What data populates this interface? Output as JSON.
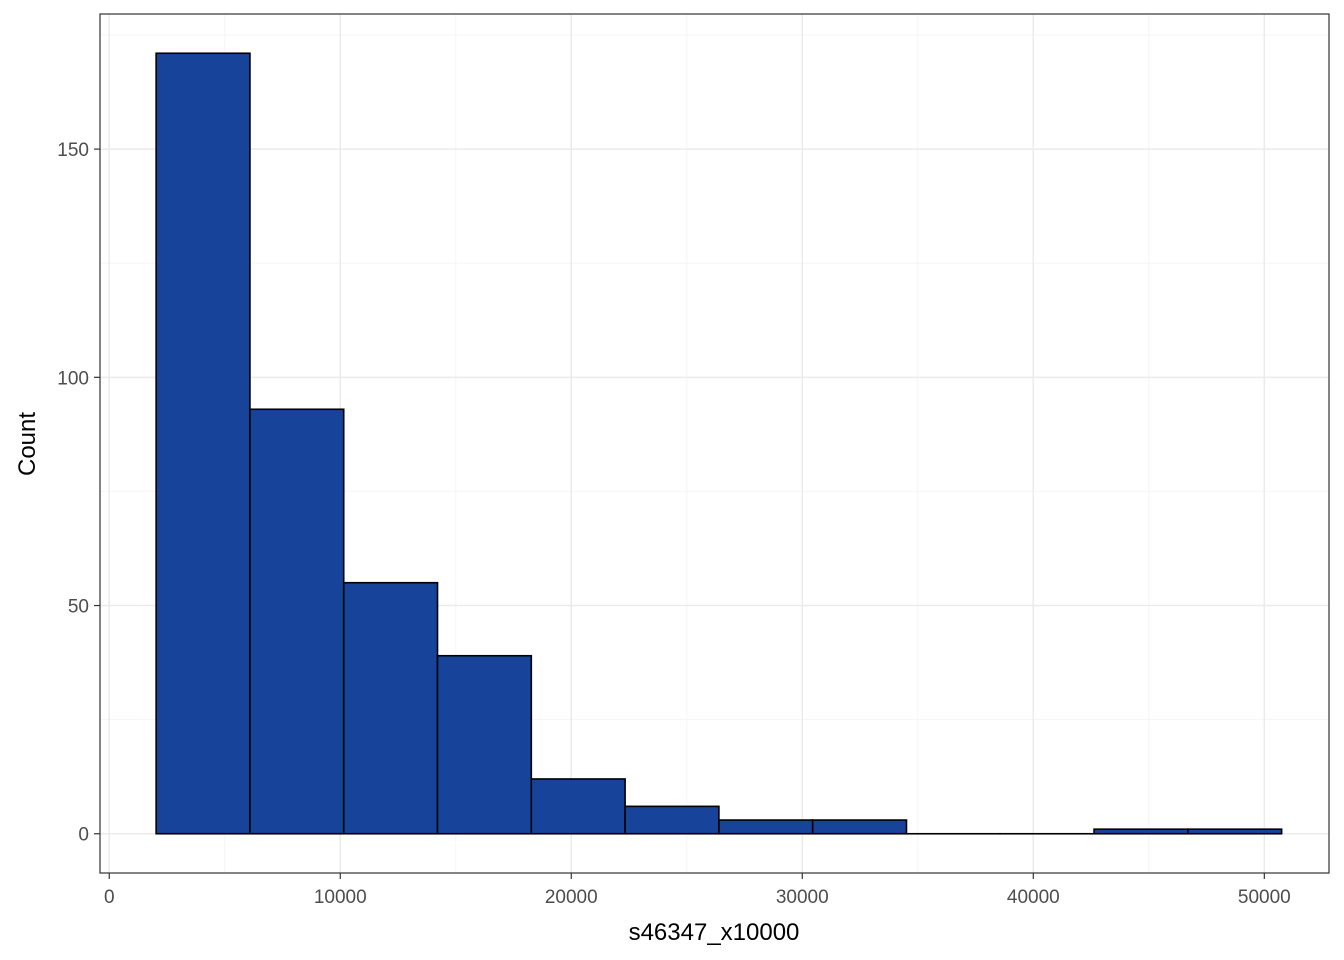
{
  "chart_data": {
    "type": "bar",
    "subtype": "histogram",
    "title": "",
    "xlabel": "s46347_x10000",
    "ylabel": "Count",
    "xlim": [
      -400,
      52800
    ],
    "ylim": [
      -8.6,
      179.6
    ],
    "x_ticks": [
      0,
      10000,
      20000,
      30000,
      40000,
      50000
    ],
    "y_ticks": [
      0,
      50,
      100,
      150
    ],
    "bins": [
      {
        "x0": 2030,
        "x1": 6090,
        "count": 171
      },
      {
        "x0": 6090,
        "x1": 10150,
        "count": 93
      },
      {
        "x0": 10150,
        "x1": 14210,
        "count": 55
      },
      {
        "x0": 14210,
        "x1": 18270,
        "count": 39
      },
      {
        "x0": 18270,
        "x1": 22330,
        "count": 12
      },
      {
        "x0": 22330,
        "x1": 26390,
        "count": 6
      },
      {
        "x0": 26390,
        "x1": 30450,
        "count": 3
      },
      {
        "x0": 30450,
        "x1": 34510,
        "count": 3
      },
      {
        "x0": 34510,
        "x1": 38570,
        "count": 0
      },
      {
        "x0": 38570,
        "x1": 42630,
        "count": 0
      },
      {
        "x0": 42630,
        "x1": 46690,
        "count": 1
      },
      {
        "x0": 46690,
        "x1": 50750,
        "count": 1
      }
    ],
    "grid": true,
    "legend": "none",
    "colors": {
      "bar_fill": "#18439a",
      "bar_stroke": "#000000",
      "grid_major": "#ebebeb",
      "grid_minor": "#f5f5f5",
      "panel_border": "#333333"
    }
  }
}
